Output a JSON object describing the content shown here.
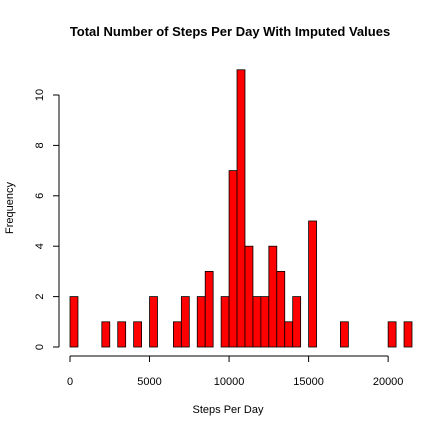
{
  "chart_data": {
    "type": "bar",
    "title": "Total Number of Steps Per Day With Imputed Values",
    "xlabel": "Steps Per Day",
    "ylabel": "Frequency",
    "bar_color": "#ff0000",
    "bin_width": 500,
    "xlim": [
      0,
      21500
    ],
    "ylim": [
      0,
      11
    ],
    "x_ticks": [
      0,
      5000,
      10000,
      15000,
      20000
    ],
    "y_ticks": [
      0,
      2,
      4,
      6,
      8,
      10
    ],
    "grid": false,
    "legend": "none",
    "series": [
      {
        "bins_start": [
          0,
          2000,
          3000,
          3500,
          4000,
          5000,
          6000,
          6500,
          7000,
          7500,
          8000,
          8500,
          9000,
          9500,
          10000,
          10500,
          11000,
          11500,
          12000,
          12500,
          13000,
          13500,
          14000,
          15000,
          17000,
          20000,
          21000
        ],
        "values": [
          2,
          1,
          1,
          0,
          1,
          2,
          0,
          1,
          2,
          0,
          2,
          3,
          0,
          2,
          7,
          11,
          4,
          2,
          2,
          4,
          3,
          1,
          2,
          5,
          1,
          1,
          1
        ]
      }
    ]
  }
}
